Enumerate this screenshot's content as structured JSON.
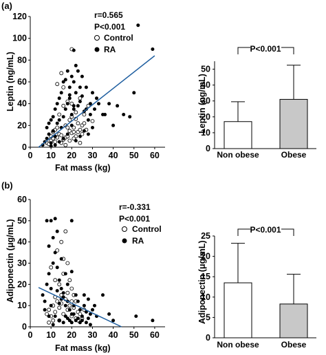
{
  "colors": {
    "fit_line": "#1f5fa0",
    "obese_bar": "#c8c8c8",
    "non_obese_bar": "#ffffff"
  },
  "chart_data": [
    {
      "panel": "(a)",
      "type": "scatter",
      "xlabel": "Fat mass (kg)",
      "ylabel": "Leptin (ng/mL)",
      "xlim": [
        0,
        65
      ],
      "ylim": [
        0,
        120
      ],
      "xticks": [
        0,
        10,
        20,
        30,
        40,
        50,
        60
      ],
      "yticks": [
        0,
        20,
        40,
        60,
        80,
        100,
        120
      ],
      "stats": {
        "r": "r=0.565",
        "p": "P<0.001"
      },
      "legend": [
        {
          "name": "Control",
          "marker": "open-circle"
        },
        {
          "name": "RA",
          "marker": "filled-circle"
        }
      ],
      "fit_line": {
        "x": [
          4,
          60
        ],
        "y": [
          0,
          84
        ]
      },
      "series": [
        {
          "name": "Control",
          "points": [
            [
              8,
              4
            ],
            [
              9,
              3
            ],
            [
              10,
              6
            ],
            [
              11,
              8
            ],
            [
              12,
              5
            ],
            [
              13,
              9
            ],
            [
              14,
              12
            ],
            [
              15,
              11
            ],
            [
              16,
              7
            ],
            [
              17,
              9
            ],
            [
              18,
              10
            ],
            [
              19,
              15
            ],
            [
              20,
              13
            ],
            [
              21,
              18
            ],
            [
              22,
              10
            ],
            [
              23,
              14
            ],
            [
              24,
              16
            ],
            [
              25,
              20
            ],
            [
              26,
              22
            ],
            [
              14,
              30
            ],
            [
              16,
              38
            ],
            [
              18,
              42
            ],
            [
              20,
              28
            ],
            [
              22,
              32
            ],
            [
              24,
              45
            ],
            [
              26,
              30
            ],
            [
              28,
              38
            ],
            [
              30,
              24
            ],
            [
              12,
              16
            ],
            [
              10,
              10
            ],
            [
              17,
              20
            ],
            [
              19,
              25
            ],
            [
              21,
              14
            ],
            [
              23,
              22
            ],
            [
              15,
              68
            ],
            [
              20,
              90
            ],
            [
              13,
              58
            ],
            [
              16,
              55
            ],
            [
              18,
              18
            ],
            [
              11,
              14
            ],
            [
              22,
              26
            ],
            [
              25,
              12
            ],
            [
              27,
              16
            ],
            [
              19,
              6
            ],
            [
              15,
              4
            ],
            [
              21,
              8
            ],
            [
              24,
              4
            ],
            [
              17,
              2
            ],
            [
              13,
              18
            ],
            [
              20,
              40
            ]
          ]
        },
        {
          "name": "RA",
          "points": [
            [
              6,
              2
            ],
            [
              7,
              5
            ],
            [
              8,
              8
            ],
            [
              9,
              12
            ],
            [
              10,
              4
            ],
            [
              11,
              15
            ],
            [
              12,
              10
            ],
            [
              13,
              22
            ],
            [
              14,
              25
            ],
            [
              15,
              18
            ],
            [
              16,
              28
            ],
            [
              17,
              35
            ],
            [
              18,
              40
            ],
            [
              19,
              45
            ],
            [
              20,
              30
            ],
            [
              21,
              35
            ],
            [
              22,
              50
            ],
            [
              23,
              38
            ],
            [
              24,
              42
            ],
            [
              25,
              47
            ],
            [
              26,
              33
            ],
            [
              27,
              55
            ],
            [
              28,
              25
            ],
            [
              29,
              40
            ],
            [
              30,
              50
            ],
            [
              31,
              35
            ],
            [
              32,
              45
            ],
            [
              35,
              30
            ],
            [
              38,
              40
            ],
            [
              40,
              20
            ],
            [
              45,
              30
            ],
            [
              50,
              50
            ],
            [
              52,
              112
            ],
            [
              59,
              90
            ],
            [
              21,
              89
            ],
            [
              10,
              25
            ],
            [
              12,
              35
            ],
            [
              14,
              45
            ],
            [
              16,
              60
            ],
            [
              18,
              70
            ],
            [
              20,
              65
            ],
            [
              22,
              75
            ],
            [
              24,
              55
            ],
            [
              8,
              18
            ],
            [
              9,
              22
            ],
            [
              11,
              28
            ],
            [
              13,
              40
            ],
            [
              15,
              50
            ],
            [
              17,
              62
            ],
            [
              19,
              55
            ],
            [
              21,
              60
            ],
            [
              23,
              70
            ],
            [
              25,
              65
            ],
            [
              27,
              35
            ],
            [
              29,
              30
            ],
            [
              33,
              40
            ],
            [
              36,
              30
            ],
            [
              42,
              38
            ],
            [
              48,
              28
            ],
            [
              14,
              5
            ],
            [
              16,
              8
            ],
            [
              18,
              12
            ],
            [
              20,
              20
            ],
            [
              22,
              6
            ],
            [
              24,
              10
            ],
            [
              26,
              15
            ],
            [
              28,
              12
            ],
            [
              30,
              18
            ],
            [
              12,
              2
            ],
            [
              10,
              1
            ],
            [
              19,
              48
            ],
            [
              21,
              38
            ]
          ]
        }
      ]
    },
    {
      "panel": "(a)",
      "type": "bar",
      "ylabel": "Leptin (ng/mL)",
      "ylim": [
        0,
        55
      ],
      "yticks": [
        0,
        10,
        20,
        30,
        40,
        50
      ],
      "categories": [
        "Non obese",
        "Obese"
      ],
      "values": [
        17,
        31
      ],
      "error_upper": [
        29.5,
        52.5
      ],
      "annotation": "P<0.001"
    },
    {
      "panel": "(b)",
      "type": "scatter",
      "xlabel": "Fat mass (kg)",
      "ylabel": "Adiponectin (μg/mL)",
      "xlim": [
        0,
        65
      ],
      "ylim": [
        0,
        60
      ],
      "xticks": [
        0,
        10,
        20,
        30,
        40,
        50,
        60
      ],
      "yticks": [
        0,
        10,
        20,
        30,
        40,
        50,
        60
      ],
      "stats": {
        "r": "r=-0.331",
        "p": "P<0.001"
      },
      "legend": [
        {
          "name": "Control",
          "marker": "open-circle"
        },
        {
          "name": "RA",
          "marker": "filled-circle"
        }
      ],
      "fit_line": {
        "x": [
          4,
          44
        ],
        "y": [
          18.5,
          0
        ]
      },
      "series": [
        {
          "name": "Control",
          "points": [
            [
              8,
              6
            ],
            [
              9,
              8
            ],
            [
              10,
              5
            ],
            [
              11,
              10
            ],
            [
              12,
              7
            ],
            [
              13,
              12
            ],
            [
              14,
              9
            ],
            [
              15,
              11
            ],
            [
              16,
              6
            ],
            [
              17,
              13
            ],
            [
              18,
              8
            ],
            [
              19,
              10
            ],
            [
              20,
              5
            ],
            [
              21,
              9
            ],
            [
              22,
              12
            ],
            [
              23,
              7
            ],
            [
              24,
              6
            ],
            [
              25,
              4
            ],
            [
              26,
              8
            ],
            [
              14,
              20
            ],
            [
              16,
              25
            ],
            [
              18,
              30
            ],
            [
              20,
              18
            ],
            [
              12,
              22
            ],
            [
              10,
              28
            ],
            [
              13,
              36
            ],
            [
              15,
              40
            ],
            [
              17,
              45
            ],
            [
              16,
              32
            ],
            [
              19,
              22
            ],
            [
              21,
              15
            ],
            [
              23,
              3
            ],
            [
              11,
              3
            ],
            [
              9,
              2
            ],
            [
              15,
              15
            ],
            [
              18,
              16
            ],
            [
              20,
              12
            ],
            [
              22,
              4
            ],
            [
              14,
              3
            ],
            [
              12,
              14
            ]
          ]
        },
        {
          "name": "RA",
          "points": [
            [
              6,
              15
            ],
            [
              7,
              12
            ],
            [
              8,
              20
            ],
            [
              9,
              25
            ],
            [
              10,
              18
            ],
            [
              11,
              30
            ],
            [
              12,
              35
            ],
            [
              13,
              28
            ],
            [
              14,
              22
            ],
            [
              15,
              18
            ],
            [
              16,
              14
            ],
            [
              17,
              10
            ],
            [
              18,
              12
            ],
            [
              19,
              8
            ],
            [
              20,
              6
            ],
            [
              21,
              10
            ],
            [
              22,
              15
            ],
            [
              23,
              12
            ],
            [
              24,
              8
            ],
            [
              25,
              5
            ],
            [
              26,
              10
            ],
            [
              27,
              7
            ],
            [
              28,
              4
            ],
            [
              29,
              6
            ],
            [
              30,
              8
            ],
            [
              32,
              5
            ],
            [
              35,
              15
            ],
            [
              38,
              6
            ],
            [
              40,
              3
            ],
            [
              51,
              5
            ],
            [
              59,
              3
            ],
            [
              8,
              50
            ],
            [
              10,
              50
            ],
            [
              12,
              51
            ],
            [
              20,
              50
            ],
            [
              9,
              38
            ],
            [
              11,
              42
            ],
            [
              13,
              45
            ],
            [
              15,
              32
            ],
            [
              17,
              25
            ],
            [
              10,
              10
            ],
            [
              12,
              5
            ],
            [
              14,
              3
            ],
            [
              16,
              2
            ],
            [
              18,
              4
            ],
            [
              20,
              2
            ],
            [
              22,
              3
            ],
            [
              24,
              2
            ],
            [
              7,
              8
            ],
            [
              9,
              5
            ],
            [
              11,
              1
            ],
            [
              13,
              17
            ],
            [
              15,
              13
            ],
            [
              17,
              5
            ],
            [
              19,
              3
            ],
            [
              21,
              6
            ],
            [
              23,
              4
            ],
            [
              25,
              3
            ],
            [
              27,
              2
            ],
            [
              29,
              1
            ],
            [
              14,
              11
            ],
            [
              16,
              16
            ],
            [
              18,
              20
            ],
            [
              20,
              26
            ],
            [
              26,
              15
            ],
            [
              28,
              13
            ],
            [
              31,
              10
            ]
          ]
        }
      ]
    },
    {
      "panel": "(b)",
      "type": "bar",
      "ylabel": "Adiponectin (μg/mL)",
      "ylim": [
        0,
        25
      ],
      "yticks": [
        0,
        5,
        10,
        15,
        20,
        25
      ],
      "categories": [
        "Non obese",
        "Obese"
      ],
      "values": [
        13.5,
        8.3
      ],
      "error_upper": [
        23.2,
        15.6
      ],
      "annotation": "P<0.001"
    }
  ]
}
